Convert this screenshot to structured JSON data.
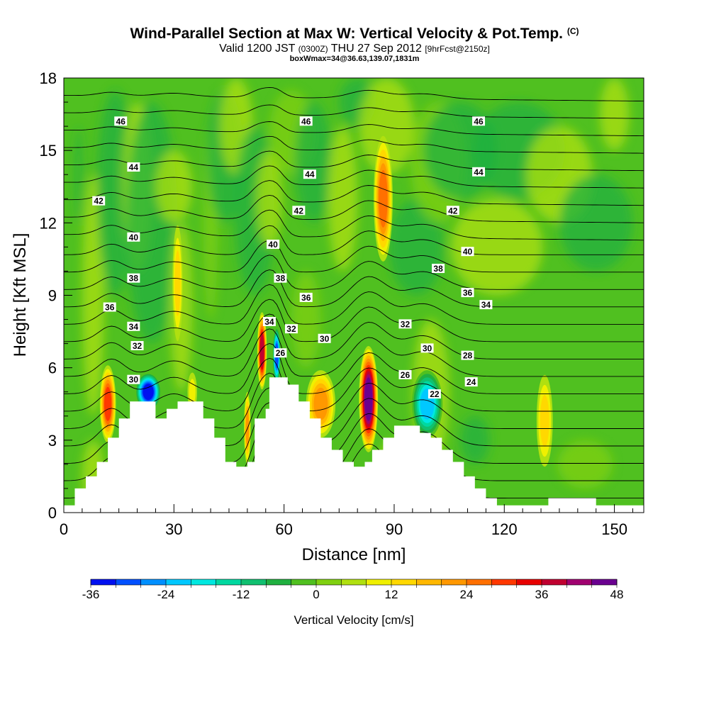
{
  "title": {
    "main": "Wind-Parallel Section at Max W: Vertical Velocity & Pot.Temp.",
    "copyright": "(C)",
    "valid_prefix": "Valid 1200 JST",
    "valid_utc": "(0300Z)",
    "valid_date": "THU 27 Sep 2012",
    "forecast": "[9hrFcst@2150z]",
    "box": "boxWmax=34@36.63,139.07,1831m"
  },
  "chart_data": {
    "type": "heatmap",
    "xlabel": "Distance [nm]",
    "ylabel": "Height [Kft MSL]",
    "xlim": [
      0,
      158
    ],
    "ylim": [
      0,
      18
    ],
    "x_ticks": [
      0,
      30,
      60,
      90,
      120,
      150
    ],
    "y_ticks": [
      0,
      3,
      6,
      9,
      12,
      15,
      18
    ],
    "colorbar": {
      "label": "Vertical Velocity [cm/s]",
      "range": [
        -36,
        48
      ],
      "step": 4,
      "tick_labels": [
        "-36",
        "-24",
        "-12",
        "0",
        "12",
        "24",
        "36",
        "48"
      ],
      "colors": [
        "#0010f0",
        "#0050ff",
        "#0090ff",
        "#00c8ff",
        "#00e8e0",
        "#00d8a0",
        "#10c070",
        "#20b040",
        "#50c020",
        "#80d010",
        "#b0e010",
        "#f0f000",
        "#ffd800",
        "#ffb800",
        "#ff9800",
        "#ff7000",
        "#ff3800",
        "#e80000",
        "#c00030",
        "#a00070",
        "#6a0090"
      ]
    },
    "terrain_kft": [
      [
        0,
        0.3
      ],
      [
        3,
        0.3
      ],
      [
        3,
        1.0
      ],
      [
        6,
        1.0
      ],
      [
        6,
        1.5
      ],
      [
        9,
        1.5
      ],
      [
        9,
        2.1
      ],
      [
        12,
        2.1
      ],
      [
        12,
        3.1
      ],
      [
        15,
        3.1
      ],
      [
        15,
        3.9
      ],
      [
        18,
        3.9
      ],
      [
        18,
        4.6
      ],
      [
        25,
        4.6
      ],
      [
        25,
        3.9
      ],
      [
        28,
        3.9
      ],
      [
        28,
        4.3
      ],
      [
        31,
        4.3
      ],
      [
        31,
        4.6
      ],
      [
        38,
        4.6
      ],
      [
        38,
        3.9
      ],
      [
        41,
        3.9
      ],
      [
        41,
        3.1
      ],
      [
        44,
        3.1
      ],
      [
        44,
        2.1
      ],
      [
        47,
        2.1
      ],
      [
        47,
        1.9
      ],
      [
        50,
        1.9
      ],
      [
        50,
        2.1
      ],
      [
        52,
        2.1
      ],
      [
        52,
        3.9
      ],
      [
        55,
        3.9
      ],
      [
        55,
        4.3
      ],
      [
        56,
        4.3
      ],
      [
        56,
        5.6
      ],
      [
        61,
        5.6
      ],
      [
        61,
        5.3
      ],
      [
        64,
        5.3
      ],
      [
        64,
        4.6
      ],
      [
        67,
        4.6
      ],
      [
        67,
        3.9
      ],
      [
        70,
        3.9
      ],
      [
        70,
        3.1
      ],
      [
        73,
        3.1
      ],
      [
        73,
        2.6
      ],
      [
        76,
        2.6
      ],
      [
        76,
        2.1
      ],
      [
        79,
        2.1
      ],
      [
        79,
        1.9
      ],
      [
        82,
        1.9
      ],
      [
        82,
        2.1
      ],
      [
        84,
        2.1
      ],
      [
        84,
        2.6
      ],
      [
        87,
        2.6
      ],
      [
        87,
        3.1
      ],
      [
        90,
        3.1
      ],
      [
        90,
        3.6
      ],
      [
        97,
        3.6
      ],
      [
        97,
        3.3
      ],
      [
        100,
        3.3
      ],
      [
        100,
        3.1
      ],
      [
        103,
        3.1
      ],
      [
        103,
        2.6
      ],
      [
        106,
        2.6
      ],
      [
        106,
        2.1
      ],
      [
        109,
        2.1
      ],
      [
        109,
        1.5
      ],
      [
        112,
        1.5
      ],
      [
        112,
        1.0
      ],
      [
        115,
        1.0
      ],
      [
        115,
        0.6
      ],
      [
        118,
        0.6
      ],
      [
        118,
        0.3
      ],
      [
        132,
        0.3
      ],
      [
        132,
        0.6
      ],
      [
        145,
        0.6
      ],
      [
        145,
        0.3
      ],
      [
        158,
        0.3
      ],
      [
        158,
        0
      ],
      [
        0,
        0
      ]
    ],
    "velocity_features": [
      {
        "x": 12,
        "h": 4.5,
        "w": 26,
        "note": "updraft"
      },
      {
        "x": 23,
        "h": 5.0,
        "w": -34,
        "note": "downdraft"
      },
      {
        "x": 35,
        "h": 5.0,
        "w": 8
      },
      {
        "x": 31,
        "h": 9.5,
        "w": 10
      },
      {
        "x": 50,
        "h": 3.5,
        "w": 18
      },
      {
        "x": 54,
        "h": 6.7,
        "w": 34,
        "note": "boxWmax"
      },
      {
        "x": 58,
        "h": 6.5,
        "w": -30,
        "note": "downdraft"
      },
      {
        "x": 70,
        "h": 4.5,
        "w": 18
      },
      {
        "x": 83,
        "h": 4.7,
        "w": 44,
        "note": "max updraft"
      },
      {
        "x": 87,
        "h": 13.0,
        "w": 22
      },
      {
        "x": 99,
        "h": 4.5,
        "w": -24,
        "note": "downdraft"
      },
      {
        "x": 131,
        "h": 3.8,
        "w": 10
      }
    ],
    "theta_contour_labels": [
      {
        "v": "46",
        "x": 15.5,
        "h": 16.2
      },
      {
        "v": "46",
        "x": 66,
        "h": 16.2
      },
      {
        "v": "46",
        "x": 113,
        "h": 16.2
      },
      {
        "v": "44",
        "x": 19,
        "h": 14.3
      },
      {
        "v": "44",
        "x": 67,
        "h": 14.0
      },
      {
        "v": "44",
        "x": 113,
        "h": 14.1
      },
      {
        "v": "42",
        "x": 9.5,
        "h": 12.9
      },
      {
        "v": "42",
        "x": 64,
        "h": 12.5
      },
      {
        "v": "42",
        "x": 106,
        "h": 12.5
      },
      {
        "v": "40",
        "x": 19,
        "h": 11.4
      },
      {
        "v": "40",
        "x": 57,
        "h": 11.1
      },
      {
        "v": "40",
        "x": 110,
        "h": 10.8
      },
      {
        "v": "38",
        "x": 19,
        "h": 9.7
      },
      {
        "v": "38",
        "x": 59,
        "h": 9.7
      },
      {
        "v": "38",
        "x": 102,
        "h": 10.1
      },
      {
        "v": "36",
        "x": 12.5,
        "h": 8.5
      },
      {
        "v": "36",
        "x": 66,
        "h": 8.9
      },
      {
        "v": "36",
        "x": 110,
        "h": 9.1
      },
      {
        "v": "34",
        "x": 19,
        "h": 7.7
      },
      {
        "v": "34",
        "x": 56,
        "h": 7.9
      },
      {
        "v": "34",
        "x": 115,
        "h": 8.6
      },
      {
        "v": "32",
        "x": 20,
        "h": 6.9
      },
      {
        "v": "32",
        "x": 62,
        "h": 7.6
      },
      {
        "v": "32",
        "x": 93,
        "h": 7.8
      },
      {
        "v": "30",
        "x": 19,
        "h": 5.5
      },
      {
        "v": "30",
        "x": 71,
        "h": 7.2
      },
      {
        "v": "30",
        "x": 99,
        "h": 6.8
      },
      {
        "v": "28",
        "x": 110,
        "h": 6.5
      },
      {
        "v": "26",
        "x": 59,
        "h": 6.6
      },
      {
        "v": "26",
        "x": 93,
        "h": 5.7
      },
      {
        "v": "24",
        "x": 111,
        "h": 5.4
      },
      {
        "v": "22",
        "x": 101,
        "h": 4.9
      }
    ]
  }
}
